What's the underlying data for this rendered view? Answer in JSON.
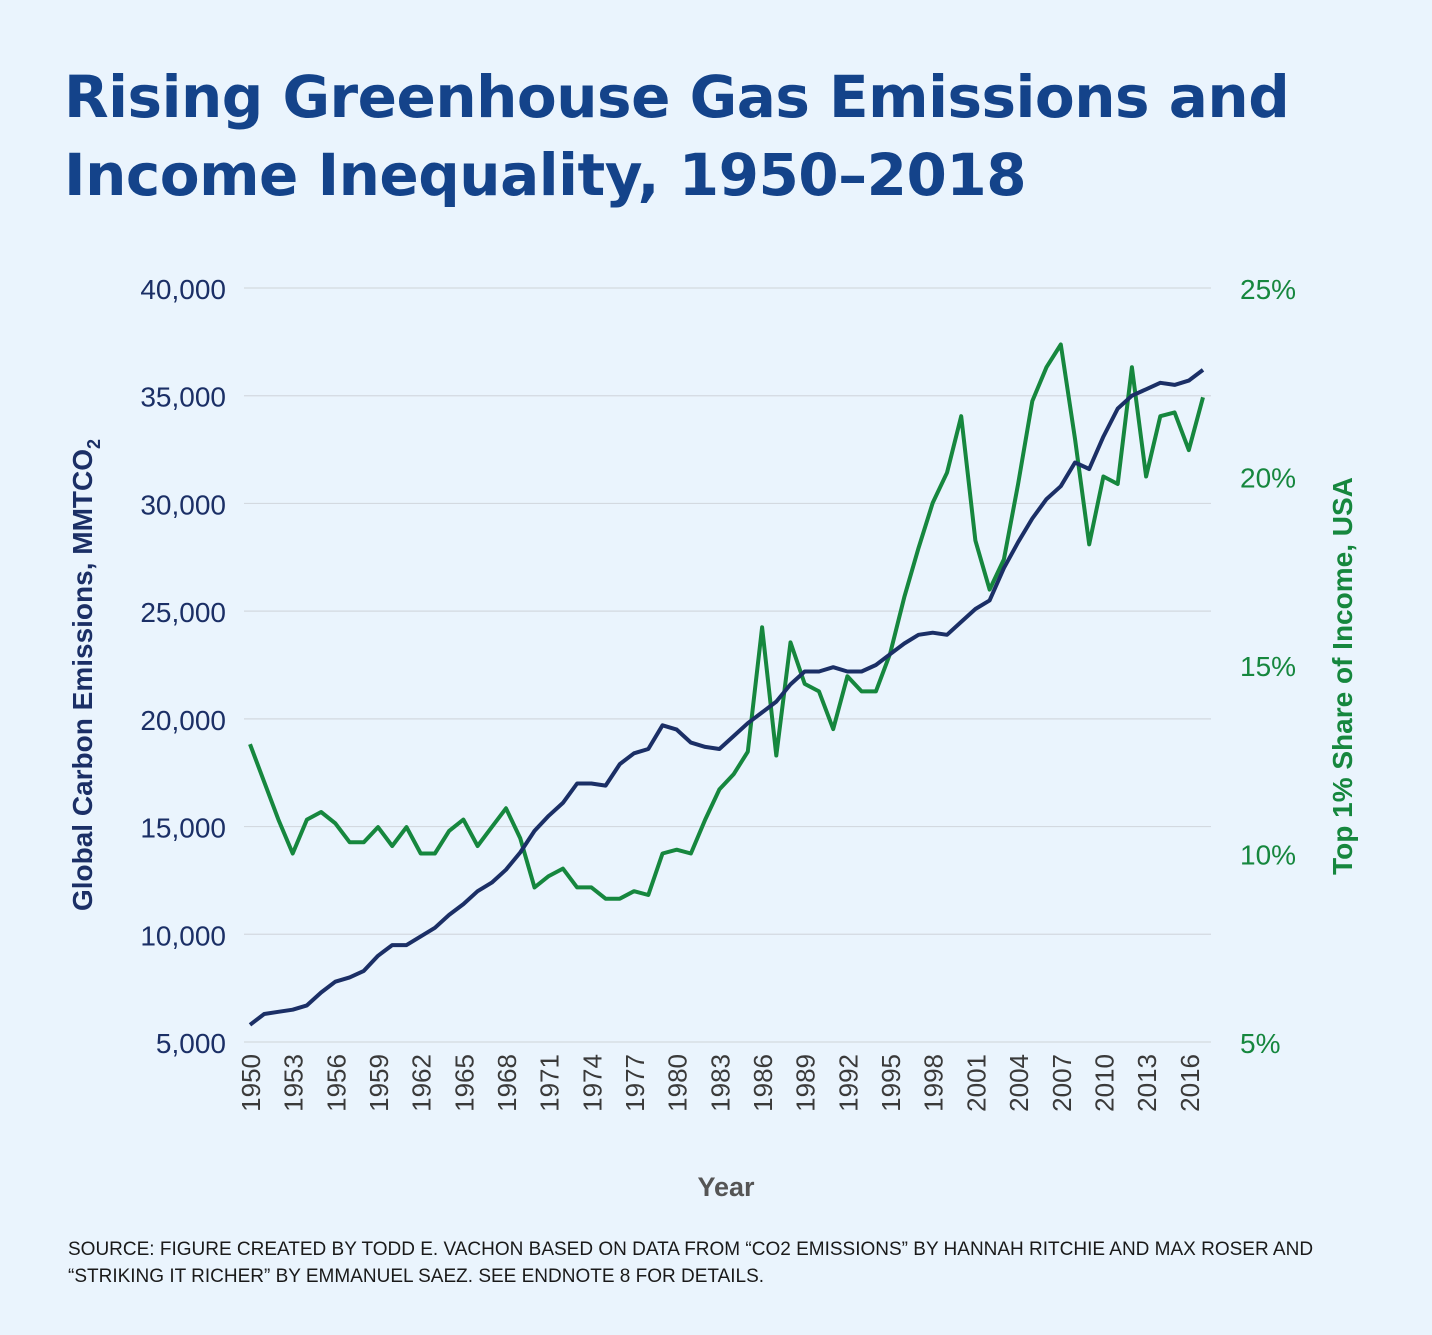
{
  "title_line1": "Rising Greenhouse Gas Emissions and",
  "title_line2": "Income Inequality, 1950–2018",
  "source": "SOURCE: FIGURE CREATED BY TODD E. VACHON BASED ON DATA FROM “CO2 EMISSIONS” BY HANNAH RITCHIE AND MAX ROSER AND “STRIKING IT RICHER” BY EMMANUEL SAEZ. SEE ENDNOTE 8 FOR DETAILS.",
  "colors": {
    "title": "#14438a",
    "emissions": "#1b2f66",
    "income": "#16873e",
    "grid": "#d3d9e0",
    "background": "#eaf4fd"
  },
  "chart_data": {
    "type": "line",
    "xlabel": "Year",
    "ylabel_left": "Global Carbon Emissions, MMTCO",
    "ylabel_left_subscript": "2",
    "ylabel_right": "Top 1% Share of Income, USA",
    "x_ticks": [
      "1950",
      "1953",
      "1956",
      "1959",
      "1962",
      "1965",
      "1968",
      "1971",
      "1974",
      "1977",
      "1980",
      "1983",
      "1986",
      "1989",
      "1992",
      "1995",
      "1998",
      "2001",
      "2004",
      "2007",
      "2010",
      "2013",
      "2016"
    ],
    "y_left_ticks": [
      "5,000",
      "10,000",
      "15,000",
      "20,000",
      "25,000",
      "30,000",
      "35,000",
      "40,000"
    ],
    "y_right_ticks": [
      "5%",
      "10%",
      "15%",
      "20%",
      "25%"
    ],
    "ylim_left": [
      5000,
      40000
    ],
    "ylim_right": [
      5,
      25
    ],
    "grid": true,
    "x": [
      1950,
      1951,
      1952,
      1953,
      1954,
      1955,
      1956,
      1957,
      1958,
      1959,
      1960,
      1961,
      1962,
      1963,
      1964,
      1965,
      1966,
      1967,
      1968,
      1969,
      1970,
      1971,
      1972,
      1973,
      1974,
      1975,
      1976,
      1977,
      1978,
      1979,
      1980,
      1981,
      1982,
      1983,
      1984,
      1985,
      1986,
      1987,
      1988,
      1989,
      1990,
      1991,
      1992,
      1993,
      1994,
      1995,
      1996,
      1997,
      1998,
      1999,
      2000,
      2001,
      2002,
      2003,
      2004,
      2005,
      2006,
      2007,
      2008,
      2009,
      2010,
      2011,
      2012,
      2013,
      2014,
      2015,
      2016,
      2017
    ],
    "series": [
      {
        "axis": "left",
        "values": [
          5800,
          6300,
          6400,
          6500,
          6700,
          7300,
          7800,
          8000,
          8300,
          9000,
          9500,
          9500,
          9900,
          10300,
          10900,
          11400,
          12000,
          12400,
          13000,
          13800,
          14800,
          15500,
          16100,
          17000,
          17000,
          16900,
          17900,
          18400,
          18600,
          19700,
          19500,
          18900,
          18700,
          18600,
          19200,
          19800,
          20300,
          20800,
          21600,
          22200,
          22200,
          22400,
          22200,
          22200,
          22500,
          23000,
          23500,
          23900,
          24000,
          23900,
          24500,
          25100,
          25500,
          27000,
          28200,
          29300,
          30200,
          30800,
          31900,
          31600,
          33100,
          34400,
          35000,
          35300,
          35600,
          35500,
          35700,
          36200
        ]
      },
      {
        "axis": "right",
        "values": [
          12.9,
          11.9,
          10.9,
          10.0,
          10.9,
          11.1,
          10.8,
          10.3,
          10.3,
          10.7,
          10.2,
          10.7,
          10.0,
          10.0,
          10.6,
          10.9,
          10.2,
          10.7,
          11.2,
          10.4,
          9.1,
          9.4,
          9.6,
          9.1,
          9.1,
          8.8,
          8.8,
          9.0,
          8.9,
          10.0,
          10.1,
          10.0,
          10.9,
          11.7,
          12.1,
          12.7,
          16.0,
          12.6,
          15.6,
          14.5,
          14.3,
          13.3,
          14.7,
          14.3,
          14.3,
          15.3,
          16.8,
          18.1,
          19.3,
          20.1,
          21.6,
          18.3,
          17.0,
          17.8,
          19.8,
          22.0,
          22.9,
          23.5,
          21.0,
          18.2,
          20.0,
          19.8,
          22.9,
          20.0,
          21.6,
          21.7,
          20.7,
          22.1
        ]
      }
    ]
  }
}
